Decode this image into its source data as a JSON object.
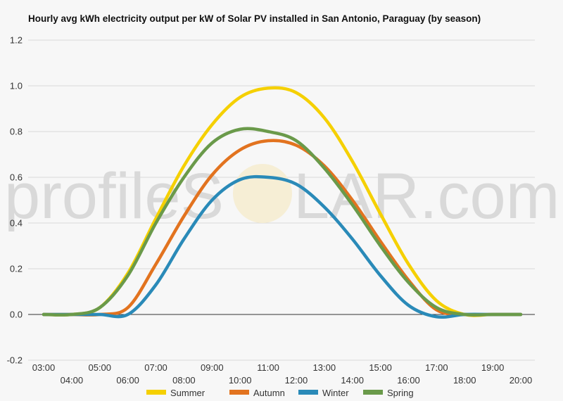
{
  "chart_data": {
    "type": "line",
    "title": "Hourly avg kWh electricity output per kW of Solar PV installed in San Antonio, Paraguay (by season)",
    "xlabel": "",
    "ylabel": "",
    "ylim": [
      -0.2,
      1.2
    ],
    "yticks": [
      "-0.2",
      "0.0",
      "0.2",
      "0.4",
      "0.6",
      "0.8",
      "1.0",
      "1.2"
    ],
    "xticks": [
      "03:00",
      "04:00",
      "05:00",
      "06:00",
      "07:00",
      "08:00",
      "09:00",
      "10:00",
      "11:00",
      "12:00",
      "13:00",
      "14:00",
      "15:00",
      "16:00",
      "17:00",
      "18:00",
      "19:00",
      "20:00"
    ],
    "grid": true,
    "legend_position": "bottom",
    "series": [
      {
        "name": "Summer",
        "color": "#f5d000",
        "values": [
          0.0,
          0.0,
          0.03,
          0.18,
          0.42,
          0.65,
          0.83,
          0.95,
          0.99,
          0.97,
          0.86,
          0.67,
          0.44,
          0.22,
          0.06,
          0.0,
          0.0,
          0.0
        ]
      },
      {
        "name": "Autumn",
        "color": "#e2731f",
        "values": [
          0.0,
          0.0,
          0.0,
          0.03,
          0.22,
          0.43,
          0.61,
          0.72,
          0.76,
          0.74,
          0.65,
          0.5,
          0.32,
          0.15,
          0.02,
          0.0,
          0.0,
          0.0
        ]
      },
      {
        "name": "Winter",
        "color": "#2a8ab8",
        "values": [
          0.0,
          0.0,
          0.0,
          0.0,
          0.13,
          0.33,
          0.5,
          0.59,
          0.6,
          0.57,
          0.47,
          0.33,
          0.17,
          0.04,
          -0.01,
          0.0,
          0.0,
          0.0
        ]
      },
      {
        "name": "Spring",
        "color": "#6a9a4a",
        "values": [
          0.0,
          0.0,
          0.03,
          0.17,
          0.4,
          0.6,
          0.75,
          0.81,
          0.8,
          0.76,
          0.64,
          0.48,
          0.3,
          0.14,
          0.03,
          0.0,
          0.0,
          0.0
        ]
      }
    ]
  },
  "watermark": {
    "left": "profileS",
    "right": "LAR.com"
  }
}
